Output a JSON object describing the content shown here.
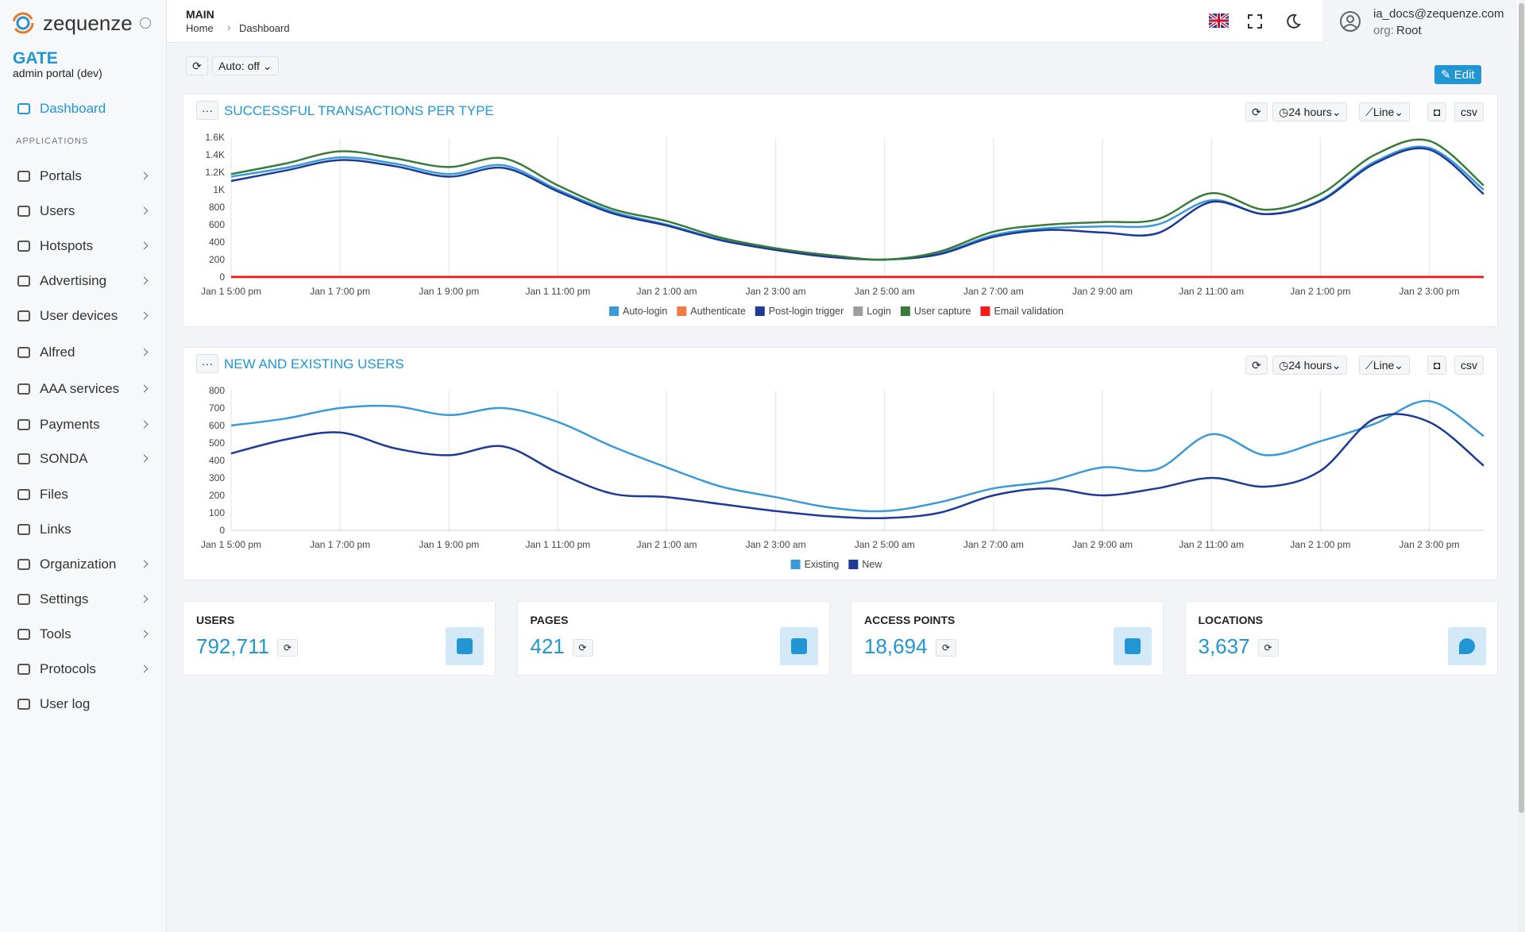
{
  "brand": {
    "logo": "zequenze",
    "app": "GATE",
    "subtitle": "admin portal (dev)"
  },
  "sidebar": {
    "active": "Dashboard",
    "section": "APPLICATIONS",
    "items": [
      "Portals",
      "Users",
      "Hotspots",
      "Advertising",
      "User devices",
      "Alfred",
      "AAA services",
      "Payments",
      "SONDA",
      "Files",
      "Links",
      "Organization",
      "Settings",
      "Tools",
      "Protocols",
      "User log"
    ]
  },
  "header": {
    "section": "MAIN",
    "breadcrumb": [
      "Home",
      "Dashboard"
    ],
    "user": "ia_docs@zequenze.com",
    "org_label": "org:",
    "org": "Root"
  },
  "toolbar": {
    "auto": "Auto: off",
    "edit": "Edit"
  },
  "controls": {
    "range": "24 hours",
    "mode": "Line",
    "export": "csv"
  },
  "chart_data": [
    {
      "type": "line",
      "title": "SUCCESSFUL TRANSACTIONS PER TYPE",
      "categories": [
        "Jan 1 5:00 pm",
        null,
        "Jan 1 7:00 pm",
        null,
        "Jan 1 9:00 pm",
        null,
        "Jan 1 11:00 pm",
        null,
        "Jan 2 1:00 am",
        null,
        "Jan 2 3:00 am",
        null,
        "Jan 2 5:00 am",
        null,
        "Jan 2 7:00 am",
        null,
        "Jan 2 9:00 am",
        null,
        "Jan 2 11:00 am",
        null,
        "Jan 2 1:00 pm",
        null,
        "Jan 2 3:00 pm",
        null
      ],
      "ylim": [
        0,
        1600
      ],
      "yticks": [
        0,
        200,
        400,
        600,
        800,
        {
          "value": 1000,
          "label": "1K"
        },
        {
          "value": 1200,
          "label": "1.2K"
        },
        {
          "value": 1400,
          "label": "1.4K"
        },
        {
          "value": 1600,
          "label": "1.6K"
        }
      ],
      "grid": "x",
      "legend": "bottom",
      "series": [
        {
          "name": "Auto-login",
          "color": "#3a9ad9",
          "values": [
            1150,
            1250,
            1370,
            1300,
            1180,
            1280,
            1000,
            750,
            600,
            430,
            320,
            240,
            200,
            270,
            480,
            560,
            580,
            600,
            880,
            720,
            880,
            1320,
            1480,
            1000
          ]
        },
        {
          "name": "Authenticate",
          "color": "#f07c45",
          "values": [
            5,
            5,
            5,
            5,
            5,
            5,
            5,
            5,
            5,
            5,
            5,
            5,
            5,
            5,
            5,
            5,
            5,
            5,
            5,
            5,
            5,
            5,
            5,
            5
          ]
        },
        {
          "name": "Post-login trigger",
          "color": "#1c3a96",
          "values": [
            1100,
            1220,
            1340,
            1270,
            1150,
            1250,
            980,
            730,
            590,
            420,
            310,
            230,
            200,
            260,
            460,
            540,
            510,
            500,
            860,
            720,
            870,
            1300,
            1460,
            950
          ]
        },
        {
          "name": "Login",
          "color": "#9e9e9e",
          "values": [
            0,
            0,
            0,
            0,
            0,
            0,
            0,
            0,
            0,
            0,
            0,
            0,
            0,
            0,
            0,
            0,
            0,
            0,
            0,
            0,
            0,
            0,
            0,
            0
          ]
        },
        {
          "name": "User capture",
          "color": "#3a7a3a",
          "values": [
            1180,
            1300,
            1440,
            1360,
            1260,
            1360,
            1050,
            780,
            640,
            450,
            330,
            250,
            200,
            290,
            520,
            600,
            630,
            660,
            960,
            770,
            950,
            1400,
            1560,
            1050
          ]
        },
        {
          "name": "Email validation",
          "color": "#f01c1c",
          "values": [
            0,
            0,
            0,
            0,
            0,
            0,
            0,
            0,
            0,
            0,
            0,
            0,
            0,
            0,
            0,
            0,
            0,
            0,
            0,
            0,
            0,
            0,
            0,
            0
          ]
        }
      ]
    },
    {
      "type": "line",
      "title": "NEW AND EXISTING USERS",
      "categories": [
        "Jan 1 5:00 pm",
        null,
        "Jan 1 7:00 pm",
        null,
        "Jan 1 9:00 pm",
        null,
        "Jan 1 11:00 pm",
        null,
        "Jan 2 1:00 am",
        null,
        "Jan 2 3:00 am",
        null,
        "Jan 2 5:00 am",
        null,
        "Jan 2 7:00 am",
        null,
        "Jan 2 9:00 am",
        null,
        "Jan 2 11:00 am",
        null,
        "Jan 2 1:00 pm",
        null,
        "Jan 2 3:00 pm",
        null
      ],
      "ylim": [
        0,
        800
      ],
      "yticks": [
        0,
        100,
        200,
        300,
        400,
        500,
        600,
        700,
        800
      ],
      "grid": "x",
      "legend": "bottom",
      "series": [
        {
          "name": "Existing",
          "color": "#3a9ad9",
          "values": [
            600,
            640,
            700,
            710,
            660,
            700,
            620,
            480,
            360,
            250,
            190,
            130,
            110,
            160,
            240,
            280,
            360,
            350,
            550,
            430,
            510,
            610,
            740,
            540
          ]
        },
        {
          "name": "New",
          "color": "#1c3a96",
          "values": [
            440,
            520,
            560,
            470,
            430,
            480,
            330,
            210,
            190,
            150,
            110,
            80,
            70,
            100,
            200,
            240,
            200,
            240,
            300,
            250,
            340,
            640,
            620,
            370
          ]
        }
      ]
    }
  ],
  "stats": [
    {
      "label": "USERS",
      "value": "792,711"
    },
    {
      "label": "PAGES",
      "value": "421"
    },
    {
      "label": "ACCESS POINTS",
      "value": "18,694"
    },
    {
      "label": "LOCATIONS",
      "value": "3,637"
    }
  ]
}
